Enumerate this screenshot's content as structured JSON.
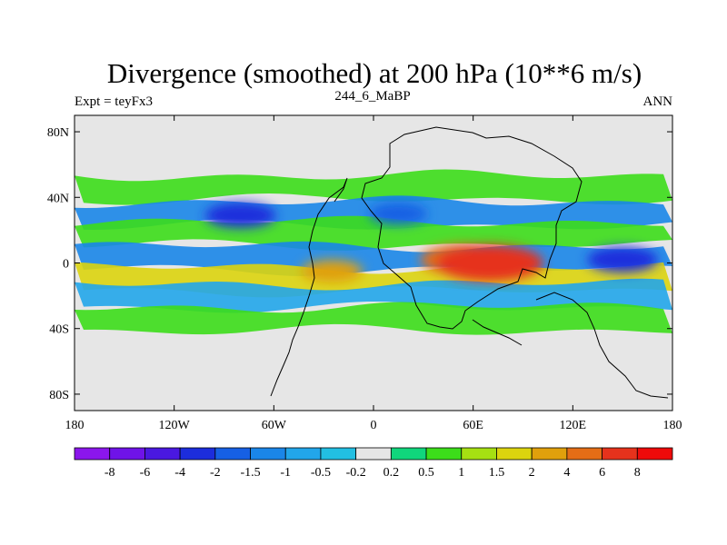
{
  "chart_data": {
    "type": "heatmap",
    "title": "Divergence (smoothed) at 200 hPa (10**6 m/s)",
    "left_label": "Expt = teyFx3",
    "center_label": "244_6_MaBP",
    "right_label": "ANN",
    "x_ticks": [
      "180",
      "120W",
      "60W",
      "0",
      "60E",
      "120E",
      "180"
    ],
    "x_tick_values": [
      -180,
      -120,
      -60,
      0,
      60,
      120,
      180
    ],
    "y_ticks": [
      "80N",
      "40N",
      "0",
      "40S",
      "80S"
    ],
    "y_tick_values": [
      80,
      40,
      0,
      -40,
      -80
    ],
    "xlim": [
      -180,
      180
    ],
    "ylim": [
      -90,
      90
    ],
    "colorbar_labels": [
      "-8",
      "-6",
      "-4",
      "-2",
      "-1.5",
      "-1",
      "-0.5",
      "-0.2",
      "0.2",
      "0.5",
      "1",
      "1.5",
      "2",
      "4",
      "6",
      "8"
    ],
    "colorbar_colors": [
      "#8b16ec",
      "#6f13e8",
      "#4a18e0",
      "#1c2ddc",
      "#1660e4",
      "#1a86e8",
      "#22a6ea",
      "#22bfe2",
      "#e6e6e6",
      "#10d67c",
      "#3cdd1a",
      "#a6e012",
      "#dcd40e",
      "#e0a00c",
      "#e46d16",
      "#e6321c",
      "#ee0a0a"
    ],
    "plume_bands": [
      {
        "lat": 46,
        "value": 0.6
      },
      {
        "lat": 30,
        "value": -1.2
      },
      {
        "lat": 18,
        "value": 0.6
      },
      {
        "lat": 3,
        "value": -1.3
      },
      {
        "lat": -10,
        "value": 1.5
      },
      {
        "lat": -20,
        "value": -1.0
      },
      {
        "lat": -34,
        "value": 0.5
      }
    ],
    "blobs": [
      {
        "lon": -80,
        "lat": 29,
        "value": -3.0
      },
      {
        "lon": 55,
        "lat": 2,
        "value": 5.0
      },
      {
        "lon": 70,
        "lat": 0,
        "value": 7.0
      },
      {
        "lon": 150,
        "lat": 2,
        "value": -3.0
      },
      {
        "lon": -25,
        "lat": -5,
        "value": 2.0
      },
      {
        "lon": 15,
        "lat": 30,
        "value": -1.6
      }
    ]
  }
}
